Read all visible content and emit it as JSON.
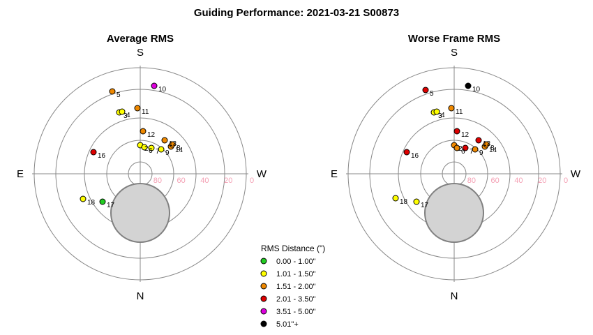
{
  "chart_data": {
    "title": "Guiding Performance: 2021-03-21 S00873",
    "type": "scatter",
    "coordinate_system": "polar (altitude / azimuth)",
    "altitude_ticks": [
      "80",
      "60",
      "40",
      "20",
      "0"
    ],
    "directions": {
      "top": "S",
      "bottom": "N",
      "left": "E",
      "right": "W"
    },
    "obstruction": "grey filled circle near the zenith, toward North",
    "legend": {
      "title": "RMS Distance (\")",
      "entries": [
        {
          "label": "0.00 - 1.00\"",
          "color": "#22cc22",
          "category": "green"
        },
        {
          "label": "1.01 - 1.50\"",
          "color": "#ffff00",
          "category": "yellow"
        },
        {
          "label": "1.51 - 2.00\"",
          "color": "#ee8800",
          "category": "orange"
        },
        {
          "label": "2.01 - 3.50\"",
          "color": "#dd0000",
          "category": "red"
        },
        {
          "label": "3.51 - 5.00\"",
          "color": "#dd00dd",
          "category": "magenta"
        },
        {
          "label": "5.01\"+",
          "color": "#000000",
          "category": "black"
        }
      ]
    },
    "panels": [
      {
        "subtitle": "Average RMS",
        "points": [
          {
            "id": "5",
            "alt": 15,
            "dx": -40,
            "dy": -118,
            "category": "orange"
          },
          {
            "id": "10",
            "alt": 15,
            "dx": 20,
            "dy": -126,
            "category": "magenta"
          },
          {
            "id": "3",
            "alt": 33,
            "dx": -30,
            "dy": -88,
            "category": "yellow"
          },
          {
            "id": "4",
            "alt": 33,
            "dx": -26,
            "dy": -89,
            "category": "yellow"
          },
          {
            "id": "11",
            "alt": 40,
            "dx": -4,
            "dy": -94,
            "category": "orange"
          },
          {
            "id": "12",
            "alt": 57,
            "dx": 4,
            "dy": -61,
            "category": "orange"
          },
          {
            "id": "2",
            "alt": 65,
            "dx": 0,
            "dy": -41,
            "category": "yellow"
          },
          {
            "id": "6",
            "alt": 64,
            "dx": 6,
            "dy": -38,
            "category": "yellow"
          },
          {
            "id": "7",
            "alt": 62,
            "dx": 16,
            "dy": -37,
            "category": "yellow"
          },
          {
            "id": "9",
            "alt": 52,
            "dx": 30,
            "dy": -35,
            "category": "yellow"
          },
          {
            "id": "13",
            "alt": 50,
            "dx": 35,
            "dy": -48,
            "category": "orange"
          },
          {
            "id": "14",
            "alt": 48,
            "dx": 44,
            "dy": -39,
            "category": "orange"
          },
          {
            "id": "8",
            "alt": 48,
            "dx": 46,
            "dy": -42,
            "category": "orange"
          },
          {
            "id": "16",
            "alt": 38,
            "dx": -67,
            "dy": -31,
            "category": "red"
          },
          {
            "id": "18",
            "alt": 28,
            "dx": -82,
            "dy": 36,
            "category": "yellow"
          },
          {
            "id": "17",
            "alt": 46,
            "dx": -54,
            "dy": 40,
            "category": "green"
          }
        ]
      },
      {
        "subtitle": "Worse Frame RMS",
        "points": [
          {
            "id": "5",
            "alt": 15,
            "dx": -41,
            "dy": -120,
            "category": "red"
          },
          {
            "id": "10",
            "alt": 15,
            "dx": 20,
            "dy": -126,
            "category": "black"
          },
          {
            "id": "3",
            "alt": 33,
            "dx": -29,
            "dy": -88,
            "category": "yellow"
          },
          {
            "id": "4",
            "alt": 33,
            "dx": -25,
            "dy": -89,
            "category": "yellow"
          },
          {
            "id": "11",
            "alt": 40,
            "dx": -4,
            "dy": -94,
            "category": "orange"
          },
          {
            "id": "12",
            "alt": 57,
            "dx": 4,
            "dy": -61,
            "category": "red"
          },
          {
            "id": "2",
            "alt": 65,
            "dx": 0,
            "dy": -41,
            "category": "orange"
          },
          {
            "id": "6",
            "alt": 64,
            "dx": 4,
            "dy": -37,
            "category": "orange"
          },
          {
            "id": "7",
            "alt": 62,
            "dx": 16,
            "dy": -37,
            "category": "red"
          },
          {
            "id": "9",
            "alt": 52,
            "dx": 30,
            "dy": -35,
            "category": "orange"
          },
          {
            "id": "13",
            "alt": 50,
            "dx": 35,
            "dy": -48,
            "category": "red"
          },
          {
            "id": "14",
            "alt": 48,
            "dx": 44,
            "dy": -39,
            "category": "orange"
          },
          {
            "id": "8",
            "alt": 48,
            "dx": 46,
            "dy": -42,
            "category": "orange"
          },
          {
            "id": "16",
            "alt": 38,
            "dx": -68,
            "dy": -31,
            "category": "red"
          },
          {
            "id": "18",
            "alt": 28,
            "dx": -84,
            "dy": 35,
            "category": "yellow"
          },
          {
            "id": "17",
            "alt": 46,
            "dx": -54,
            "dy": 40,
            "category": "yellow"
          }
        ]
      }
    ]
  }
}
